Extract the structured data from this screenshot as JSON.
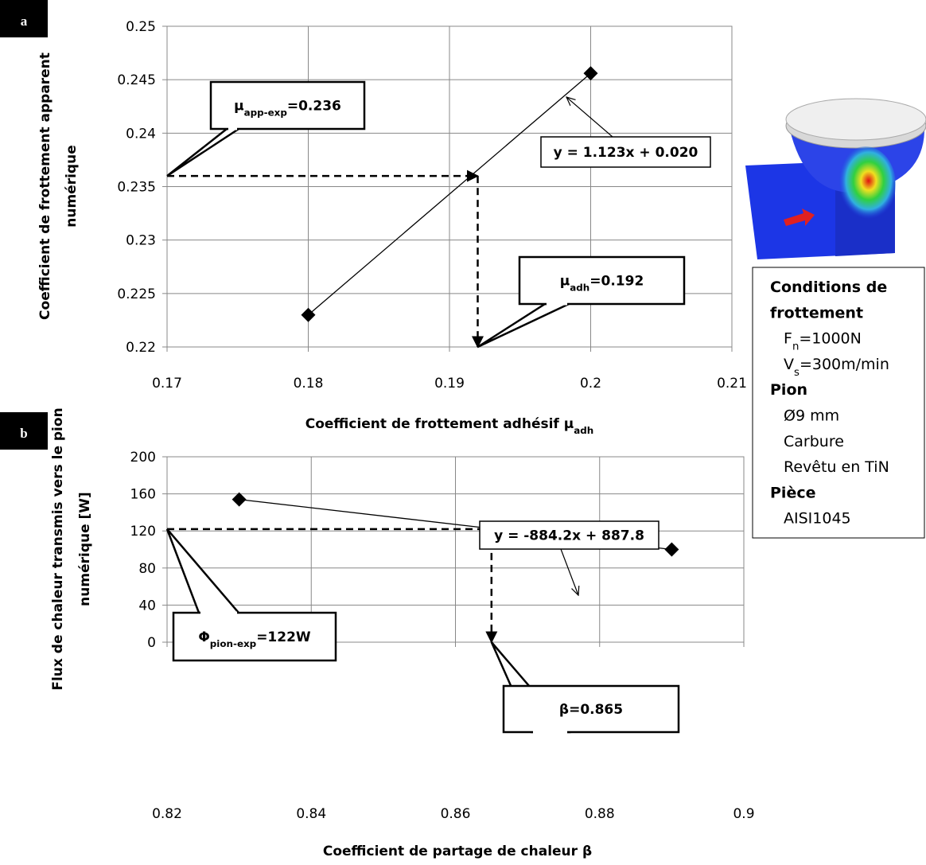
{
  "chart_data": [
    {
      "type": "line",
      "panel": "a",
      "x": [
        0.18,
        0.2
      ],
      "series": [
        {
          "color": "#000000",
          "values": [
            0.223,
            0.2456
          ]
        }
      ],
      "xlim": [
        0.17,
        0.21
      ],
      "xticks": [
        0.17,
        0.18,
        0.19,
        0.2,
        0.21
      ],
      "ylim": [
        0.22,
        0.25
      ],
      "yticks": [
        0.22,
        0.225,
        0.23,
        0.235,
        0.24,
        0.245,
        0.25
      ],
      "grid": true,
      "xlabel": {
        "text": "Coefficient de frottement adhésif μ",
        "sub": "adh"
      },
      "ylabel": [
        "Coefficient de frottement apparent",
        "numérique"
      ],
      "guide": {
        "x": 0.192,
        "y": 0.236
      },
      "callouts": [
        {
          "text": "μ",
          "sub": "app-exp",
          "after": "=0.236"
        },
        {
          "text": "y = 1.123x + 0.020"
        },
        {
          "text": "μ",
          "sub": "adh",
          "after": "=0.192"
        }
      ]
    },
    {
      "type": "line",
      "panel": "b",
      "x": [
        0.83,
        0.89
      ],
      "series": [
        {
          "color": "#000000",
          "values": [
            154,
            100
          ]
        }
      ],
      "xlim": [
        0.82,
        0.9
      ],
      "xticks": [
        0.82,
        0.84,
        0.86,
        0.88,
        0.9
      ],
      "ylim": [
        0,
        200
      ],
      "yticks": [
        0,
        40,
        80,
        120,
        160,
        200
      ],
      "grid": true,
      "xlabel": {
        "text": "Coefficient de partage de chaleur β"
      },
      "ylabel": [
        "Flux de chaleur transmis vers le pion",
        "numérique [W]"
      ],
      "guide": {
        "x": 0.865,
        "y": 122
      },
      "callouts": [
        {
          "text": "Φ",
          "sub": "pion-exp",
          "after": "=122W"
        },
        {
          "text": "y = -884.2x + 887.8"
        },
        {
          "text": "β=0.865"
        }
      ]
    }
  ],
  "side_panel": {
    "lines": [
      {
        "text": "Conditions de",
        "bold": true
      },
      {
        "text": "frottement",
        "bold": true
      },
      {
        "text": "F",
        "sub": "n",
        "after": "=1000N"
      },
      {
        "text": "V",
        "sub": "s",
        "after": "=300m/min"
      },
      {
        "text": "Pion",
        "bold": true
      },
      {
        "text": "Ø9 mm"
      },
      {
        "text": "Carbure"
      },
      {
        "text": "Revêtu en TiN"
      },
      {
        "text": "Pièce",
        "bold": true
      },
      {
        "text": "AISI1045"
      }
    ]
  }
}
